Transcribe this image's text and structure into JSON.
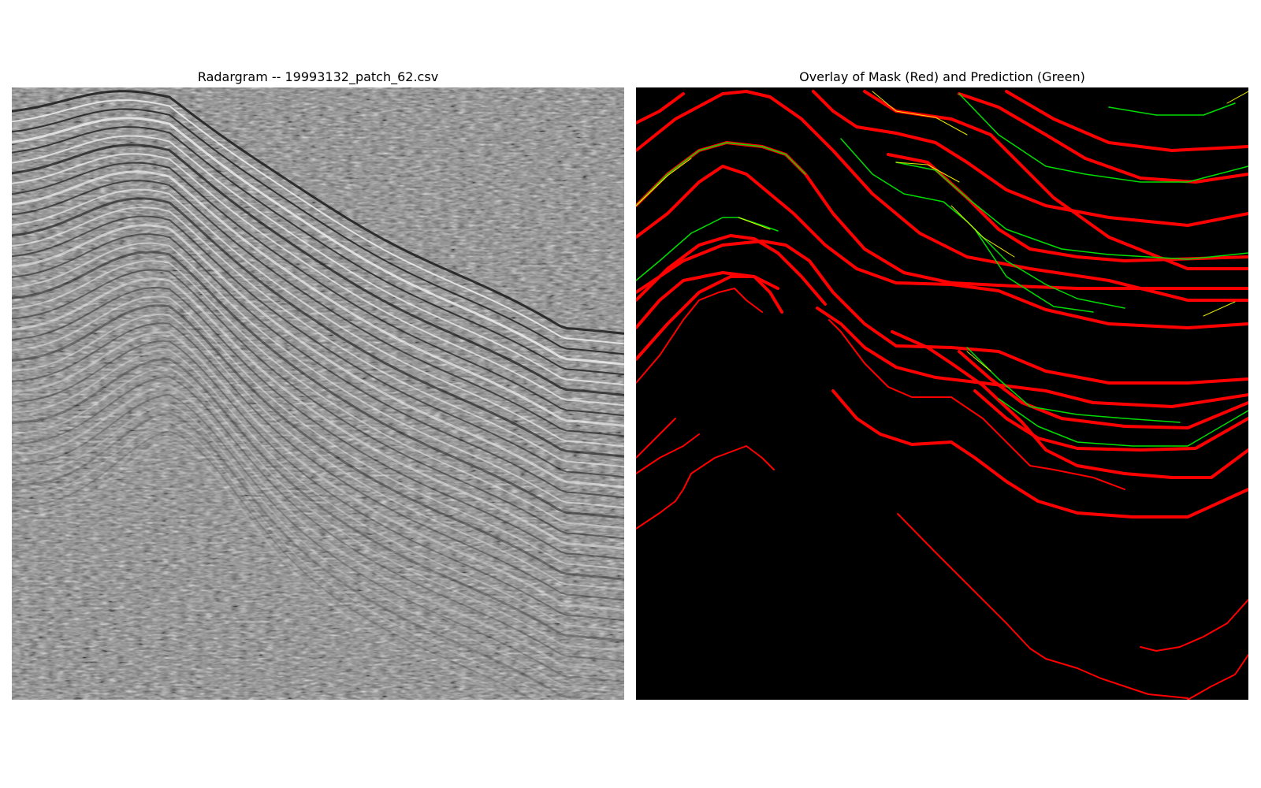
{
  "figure": {
    "left_panel": {
      "title": "Radargram -- 19993132_patch_62.csv",
      "content": "grayscale radargram image with layered reflection horizons"
    },
    "right_panel": {
      "title": "Overlay of Mask (Red) and Prediction (Green)",
      "content": "overlay of horizon mask and prediction on black background"
    }
  },
  "colors": {
    "mask": "#ff0000",
    "prediction": "#00dd00",
    "overlap": "#ffff00",
    "overlay_background": "#000000",
    "radargram_dark": "#1a1a1a",
    "radargram_light": "#f2f2f2"
  }
}
